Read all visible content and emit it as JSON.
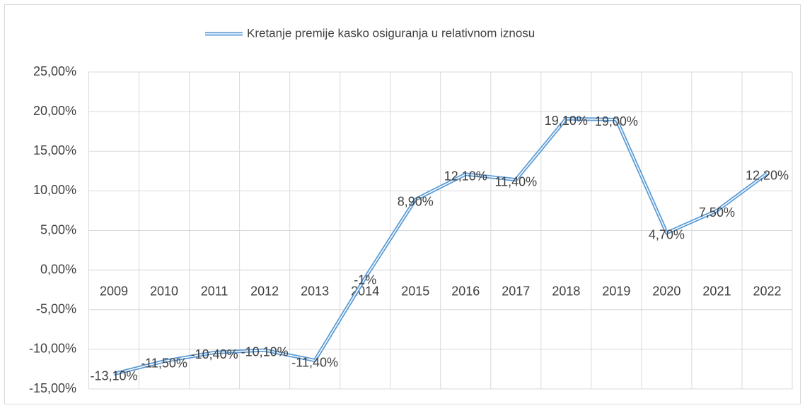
{
  "chart_data": {
    "type": "line",
    "categories": [
      "2009",
      "2010",
      "2011",
      "2012",
      "2013",
      "2014",
      "2015",
      "2016",
      "2017",
      "2018",
      "2019",
      "2020",
      "2021",
      "2022"
    ],
    "series": [
      {
        "name": "Kretanje premije kasko osiguranja u relativnom iznosu",
        "color": "#5b9bd5",
        "values": [
          -13.1,
          -11.5,
          -10.4,
          -10.1,
          -11.4,
          -1,
          8.9,
          12.1,
          11.4,
          19.1,
          19.0,
          4.7,
          7.5,
          12.2
        ],
        "value_labels": [
          "-13,10%",
          "-11,50%",
          "-10,40%",
          "-10,10%",
          "-11,40%",
          "-1%",
          "8,90%",
          "12,10%",
          "11,40%",
          "19,10%",
          "19,00%",
          "4,70%",
          "7,50%",
          "12,20%"
        ]
      }
    ],
    "ylim": [
      -15,
      25
    ],
    "yticks": [
      {
        "value": -15,
        "label": "-15,00%"
      },
      {
        "value": -10,
        "label": "-10,00%"
      },
      {
        "value": -5,
        "label": "-5,00%"
      },
      {
        "value": 0,
        "label": "0,00%"
      },
      {
        "value": 5,
        "label": "5,00%"
      },
      {
        "value": 10,
        "label": "10,00%"
      },
      {
        "value": 15,
        "label": "15,00%"
      },
      {
        "value": 20,
        "label": "20,00%"
      },
      {
        "value": 25,
        "label": "25,00%"
      }
    ],
    "grid": true,
    "legend": "top"
  }
}
